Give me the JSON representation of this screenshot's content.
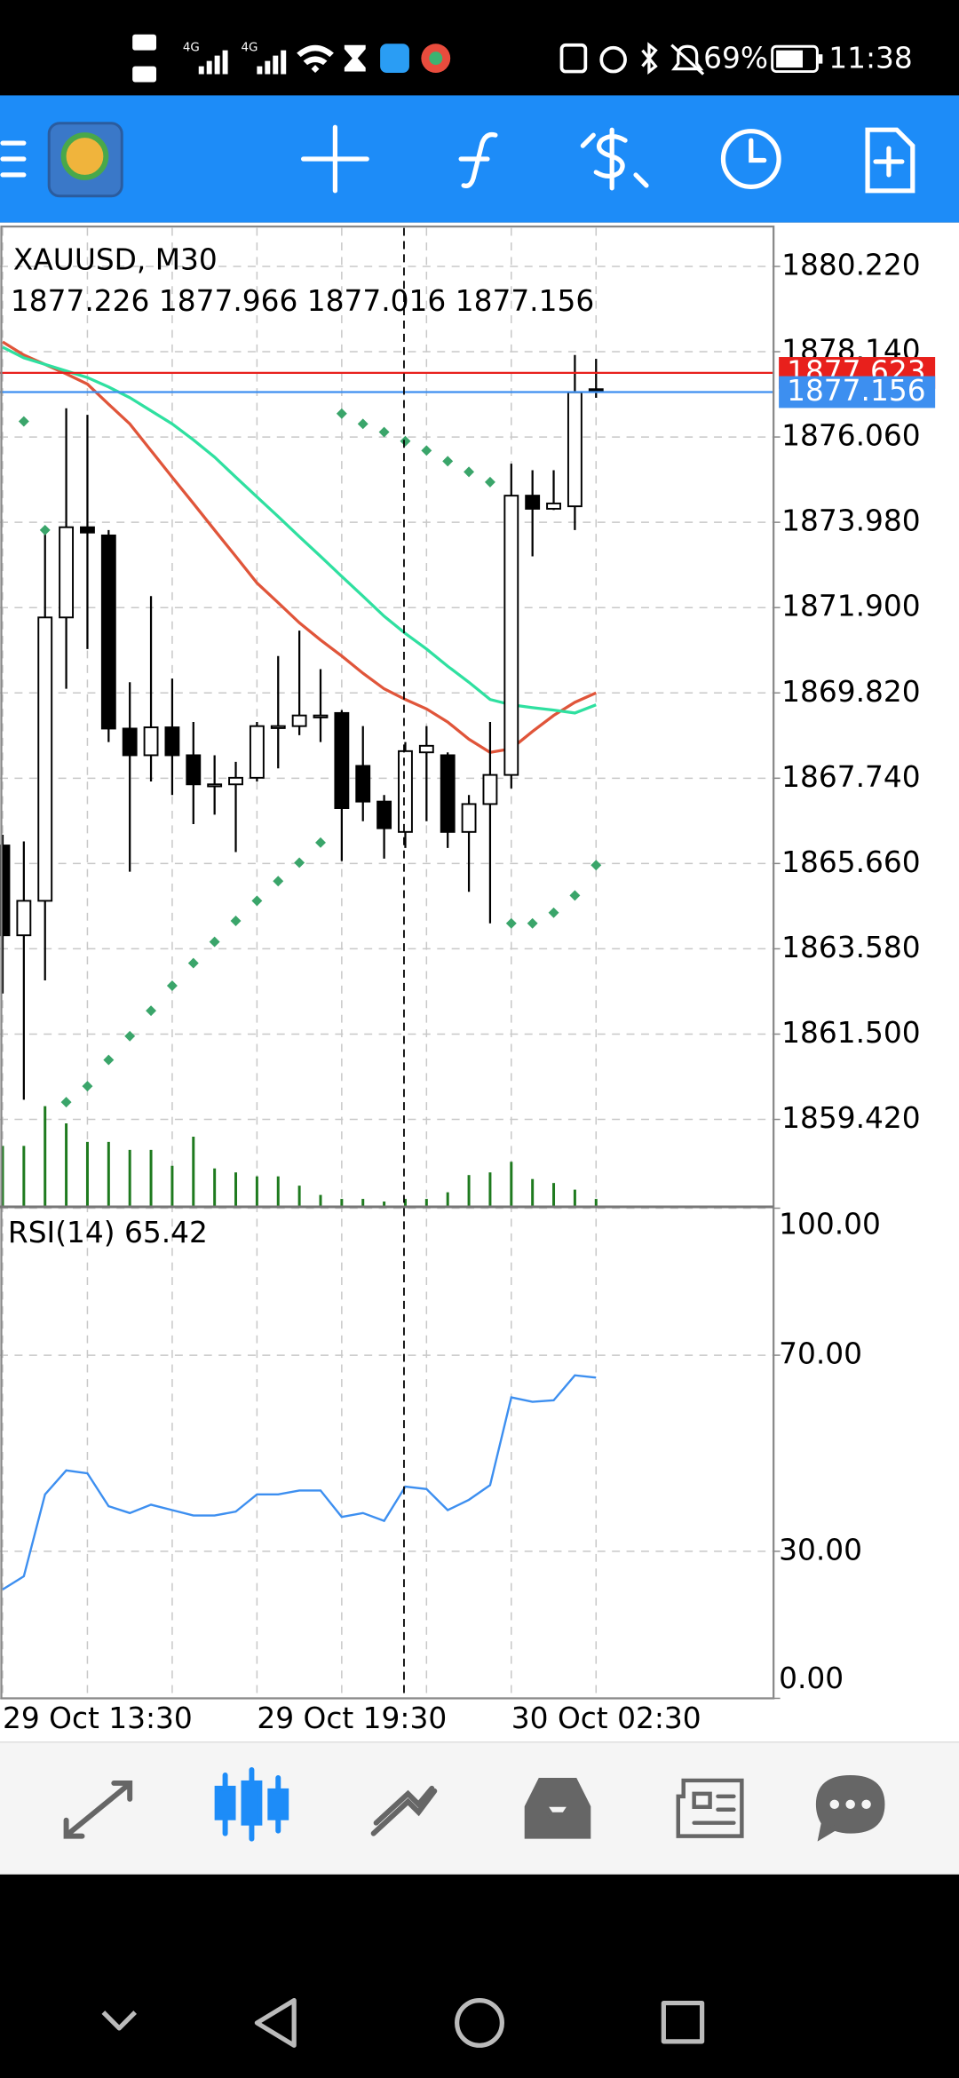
{
  "status_bar": {
    "network": [
      "4G",
      "4G"
    ],
    "battery": "69%",
    "time": "11:38"
  },
  "chart_data": [
    {
      "type": "candlestick",
      "title": "XAUUSD, M30",
      "categories": [
        "29 Oct 13:30",
        null,
        null,
        null,
        null,
        null,
        null,
        null,
        null,
        null,
        null,
        null,
        "29 Oct 19:30",
        null,
        null,
        null,
        null,
        null,
        null,
        null,
        null,
        null,
        null,
        null,
        "30 Oct 02:30",
        null,
        null,
        null,
        null
      ],
      "open": [
        1866.1,
        1863.91,
        1864.75,
        1871.66,
        1873.86,
        1873.66,
        1868.95,
        1868.3,
        1868.98,
        1868.3,
        1867.59,
        1867.59,
        1867.75,
        1869.01,
        1869.01,
        1869.27,
        1869.33,
        1868.04,
        1867.17,
        1866.43,
        1868.37,
        1868.3,
        1866.43,
        1867.11,
        1867.82,
        1874.63,
        1874.31,
        1874.37,
        1877.226
      ],
      "high": [
        1866.36,
        1866.2,
        1873.79,
        1876.76,
        1876.6,
        1873.79,
        1870.08,
        1872.18,
        1870.17,
        1869.11,
        1868.3,
        1868.14,
        1869.11,
        1870.72,
        1871.34,
        1870.4,
        1869.4,
        1869.01,
        1867.33,
        1868.62,
        1869.01,
        1868.37,
        1867.33,
        1869.11,
        1875.41,
        1875.25,
        1875.25,
        1878.06,
        1877.966
      ],
      "low": [
        1862.49,
        1859.9,
        1862.81,
        1869.92,
        1870.89,
        1868.62,
        1865.46,
        1867.66,
        1867.33,
        1866.62,
        1866.85,
        1865.94,
        1867.66,
        1867.98,
        1868.79,
        1868.62,
        1865.72,
        1866.69,
        1865.78,
        1866.04,
        1866.69,
        1866.04,
        1864.97,
        1864.2,
        1867.49,
        1873.15,
        1874.28,
        1873.79,
        1877.016
      ],
      "close": [
        1863.91,
        1864.75,
        1871.66,
        1873.86,
        1873.73,
        1868.95,
        1868.3,
        1868.98,
        1868.3,
        1867.59,
        1867.59,
        1867.75,
        1869.01,
        1869.01,
        1869.27,
        1869.27,
        1867.01,
        1867.17,
        1866.52,
        1868.4,
        1868.53,
        1866.43,
        1867.11,
        1867.82,
        1874.63,
        1874.31,
        1874.44,
        1877.15,
        1877.156
      ],
      "volume": [
        45,
        45,
        75,
        62,
        48,
        48,
        42,
        42,
        30,
        52,
        28,
        25,
        22,
        22,
        15,
        8,
        5,
        5,
        3,
        5,
        5,
        10,
        23,
        25,
        33,
        20,
        17,
        12,
        5
      ],
      "volume_color": "#1e7a1e",
      "overlays": [
        {
          "color": "#e0553a",
          "values": [
            1878.38,
            1878.06,
            1877.83,
            1877.6,
            1877.35,
            1876.86,
            1876.38,
            1875.73,
            1875.08,
            1874.44,
            1873.79,
            1873.15,
            1872.5,
            1872.02,
            1871.53,
            1871.11,
            1870.72,
            1870.3,
            1869.92,
            1869.66,
            1869.43,
            1869.11,
            1868.69,
            1868.37,
            1868.46,
            1868.88,
            1869.27,
            1869.59,
            1869.82
          ]
        },
        {
          "color": "#2fe0a0",
          "values": [
            1878.25,
            1877.99,
            1877.83,
            1877.67,
            1877.51,
            1877.28,
            1877.02,
            1876.7,
            1876.38,
            1875.99,
            1875.57,
            1875.08,
            1874.6,
            1874.12,
            1873.63,
            1873.15,
            1872.66,
            1872.18,
            1871.69,
            1871.27,
            1870.89,
            1870.47,
            1870.08,
            1869.66,
            1869.53,
            1869.46,
            1869.4,
            1869.33,
            1869.53
          ]
        }
      ],
      "sar": {
        "color": "#3aa56a",
        "values": [
          null,
          1876.44,
          1873.79,
          1859.84,
          1860.23,
          1860.87,
          1861.45,
          1862.07,
          1862.68,
          1863.23,
          1863.75,
          1864.26,
          1864.75,
          1865.23,
          1865.68,
          1866.17,
          1876.63,
          1876.38,
          1876.18,
          1875.96,
          1875.73,
          1875.47,
          1875.21,
          1874.96,
          1864.2,
          1864.2,
          1864.46,
          1864.88,
          1865.62
        ]
      },
      "price_lines": [
        {
          "value": 1877.623,
          "color": "#e8201c"
        },
        {
          "value": 1877.156,
          "color": "#3d8ff0"
        }
      ],
      "ylim": [
        1857.32,
        1881.16
      ],
      "yticks": [
        {
          "value": 1880.22,
          "label": "1880.220"
        },
        {
          "value": 1878.14,
          "label": "1878.140"
        },
        {
          "value": 1876.06,
          "label": "1876.060"
        },
        {
          "value": 1873.98,
          "label": "1873.980"
        },
        {
          "value": 1871.9,
          "label": "1871.900"
        },
        {
          "value": 1869.82,
          "label": "1869.820"
        },
        {
          "value": 1867.74,
          "label": "1867.740"
        },
        {
          "value": 1865.66,
          "label": "1865.660"
        },
        {
          "value": 1863.58,
          "label": "1863.580"
        },
        {
          "value": 1861.5,
          "label": "1861.500"
        },
        {
          "value": 1859.42,
          "label": "1859.420"
        }
      ],
      "grid": true
    },
    {
      "type": "line",
      "title": "RSI(14)",
      "color": "#3d8ff0",
      "values": [
        22.2,
        24.9,
        41.6,
        46.5,
        45.9,
        39.2,
        37.8,
        39.5,
        38.4,
        37.3,
        37.3,
        38.1,
        41.6,
        41.6,
        42.4,
        42.4,
        37.0,
        37.8,
        36.2,
        43.2,
        42.7,
        38.4,
        40.5,
        43.5,
        61.4,
        60.5,
        60.8,
        65.9,
        65.42
      ],
      "ylim": [
        0,
        100
      ],
      "yticks": [
        {
          "value": 0,
          "label": "0.00"
        },
        {
          "value": 30,
          "label": "30.00"
        },
        {
          "value": 70,
          "label": "70.00"
        },
        {
          "value": 100,
          "label": "100.00"
        }
      ],
      "grid": true
    }
  ]
}
